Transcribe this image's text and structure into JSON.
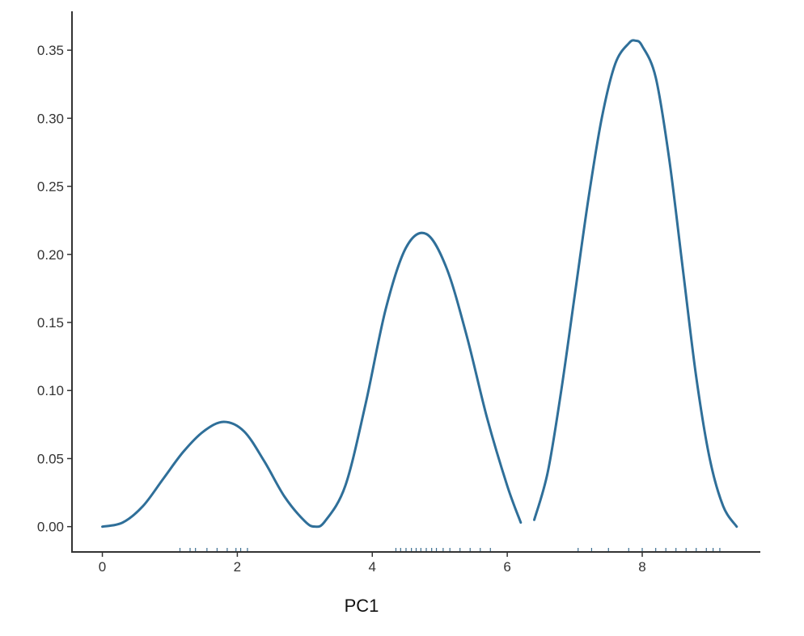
{
  "chart_data": {
    "type": "line",
    "title": "",
    "xlabel": "PC1",
    "ylabel": "",
    "xlim": [
      -0.45,
      9.75
    ],
    "ylim": [
      -0.018,
      0.375
    ],
    "x_ticks": [
      0,
      2,
      4,
      6,
      8
    ],
    "x_tick_labels": [
      "0",
      "2",
      "4",
      "6",
      "8"
    ],
    "y_ticks": [
      0.0,
      0.05,
      0.1,
      0.15,
      0.2,
      0.25,
      0.3,
      0.35
    ],
    "y_tick_labels": [
      "0.00",
      "0.05",
      "0.10",
      "0.15",
      "0.20",
      "0.25",
      "0.30",
      "0.35"
    ],
    "grid": false,
    "legend": "none",
    "line_color": "#2f6f99",
    "rug_color": "#3b6e91",
    "series": [
      {
        "x": [
          0.0,
          0.3,
          0.6,
          0.9,
          1.2,
          1.5,
          1.8,
          2.1,
          2.4,
          2.7,
          3.0,
          3.15,
          3.3,
          3.6,
          3.9,
          4.2,
          4.5,
          4.8,
          5.1,
          5.4,
          5.7,
          6.0,
          6.2
        ],
        "y": [
          0.0,
          0.003,
          0.015,
          0.035,
          0.055,
          0.07,
          0.077,
          0.07,
          0.048,
          0.022,
          0.004,
          0.0,
          0.004,
          0.03,
          0.09,
          0.16,
          0.205,
          0.215,
          0.19,
          0.14,
          0.08,
          0.03,
          0.003
        ]
      },
      {
        "x": [
          6.4,
          6.6,
          6.8,
          7.0,
          7.2,
          7.4,
          7.6,
          7.8,
          7.9,
          8.0,
          8.2,
          8.4,
          8.6,
          8.8,
          9.0,
          9.2,
          9.4
        ],
        "y": [
          0.005,
          0.04,
          0.1,
          0.17,
          0.24,
          0.3,
          0.34,
          0.355,
          0.357,
          0.353,
          0.33,
          0.27,
          0.19,
          0.11,
          0.05,
          0.015,
          0.0
        ]
      }
    ],
    "rug": [
      1.15,
      1.3,
      1.38,
      1.55,
      1.7,
      1.85,
      1.98,
      2.05,
      2.15,
      4.35,
      4.42,
      4.5,
      4.58,
      4.65,
      4.72,
      4.8,
      4.88,
      4.95,
      5.05,
      5.15,
      5.3,
      5.45,
      5.6,
      5.75,
      7.05,
      7.25,
      7.5,
      7.8,
      8.0,
      8.2,
      8.35,
      8.5,
      8.65,
      8.8,
      8.95,
      9.05,
      9.15
    ]
  }
}
